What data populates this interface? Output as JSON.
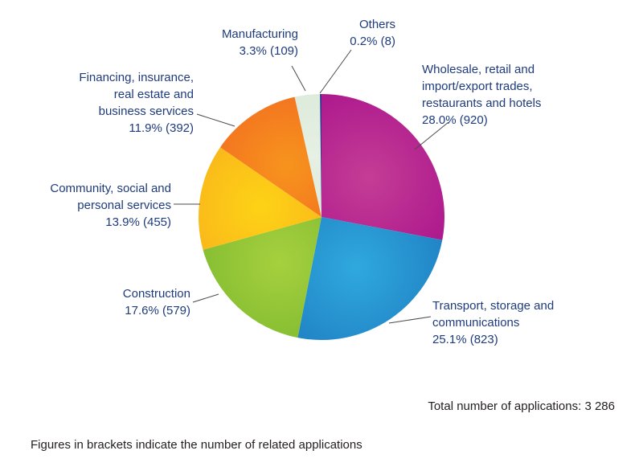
{
  "chart_data": {
    "type": "pie",
    "title": "",
    "direction": "clockwise",
    "start_angle": "12 o'clock",
    "legend_position": "callout-labels",
    "total_value": "3 286",
    "total_label": "Total number of applications: 3 286",
    "footnote": "Figures in brackets indicate the number of related applications",
    "label_color": "#1e3b7c",
    "leader_color": "#4a4a4a",
    "slices": [
      {
        "key": "wholesale",
        "label": "Wholesale, retail and import/export trades, restaurants and hotels",
        "pct": 28.0,
        "count": 920,
        "lines": [
          "Wholesale, retail and",
          "import/export trades,",
          "restaurants and hotels",
          "28.0% (920)"
        ],
        "color_center": "#c43d95",
        "color_edge": "#a50c8b"
      },
      {
        "key": "transport",
        "label": "Transport, storage and communications",
        "pct": 25.1,
        "count": 823,
        "lines": [
          "Transport, storage and",
          "communications",
          "25.1% (823)"
        ],
        "color_center": "#2fa9de",
        "color_edge": "#1b74bb"
      },
      {
        "key": "construction",
        "label": "Construction",
        "pct": 17.6,
        "count": 579,
        "lines": [
          "Construction",
          "17.6% (579)"
        ],
        "color_center": "#a6d03e",
        "color_edge": "#72b32b"
      },
      {
        "key": "community",
        "label": "Community, social and personal services",
        "pct": 13.9,
        "count": 455,
        "lines": [
          "Community, social and",
          "personal services",
          "13.9% (455)"
        ],
        "color_center": "#fdd316",
        "color_edge": "#f8a41d"
      },
      {
        "key": "financing",
        "label": "Financing, insurance, real estate and business services",
        "pct": 11.9,
        "count": 392,
        "lines": [
          "Financing, insurance,",
          "real estate and",
          "business services",
          "11.9% (392)"
        ],
        "color_center": "#f7941d",
        "color_edge": "#f05c22"
      },
      {
        "key": "manufacturing",
        "label": "Manufacturing",
        "pct": 3.3,
        "count": 109,
        "lines": [
          "Manufacturing",
          "3.3% (109)"
        ],
        "color_center": "#e6f0e4",
        "color_edge": "#d3e6d2"
      },
      {
        "key": "others",
        "label": "Others",
        "pct": 0.2,
        "count": 8,
        "lines": [
          "Others",
          "0.2% (8)"
        ],
        "color_center": "#2d3a93",
        "color_edge": "#2d3a93"
      }
    ]
  }
}
